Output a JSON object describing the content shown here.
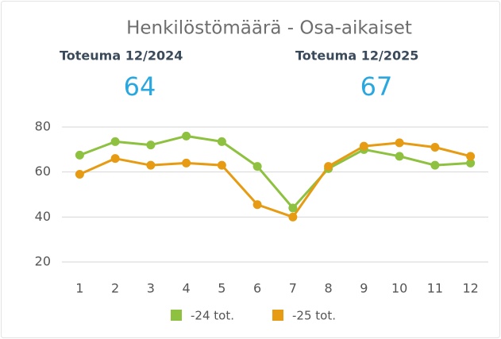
{
  "chart_data": {
    "type": "line",
    "title": "Henkilöstömäärä - Osa-aikaiset",
    "kpis": [
      {
        "label": "Toteuma 12/2024",
        "value": 64
      },
      {
        "label": "Toteuma 12/2025",
        "value": 67
      }
    ],
    "categories": [
      "1",
      "2",
      "3",
      "4",
      "5",
      "6",
      "7",
      "8",
      "9",
      "10",
      "11",
      "12"
    ],
    "series": [
      {
        "name": "-24 tot.",
        "color": "#8dc13f",
        "values": [
          67.5,
          73.5,
          72,
          76,
          73.5,
          62.5,
          44,
          61.5,
          70,
          67,
          63,
          64
        ]
      },
      {
        "name": "-25 tot.",
        "color": "#e69b12",
        "values": [
          59,
          66,
          63,
          64,
          63,
          45.5,
          40,
          62.5,
          71.5,
          73,
          71,
          67
        ]
      }
    ],
    "ylim": [
      20,
      80
    ],
    "yticks": [
      20,
      40,
      60,
      80
    ],
    "grid": true,
    "legend": "bottom"
  }
}
